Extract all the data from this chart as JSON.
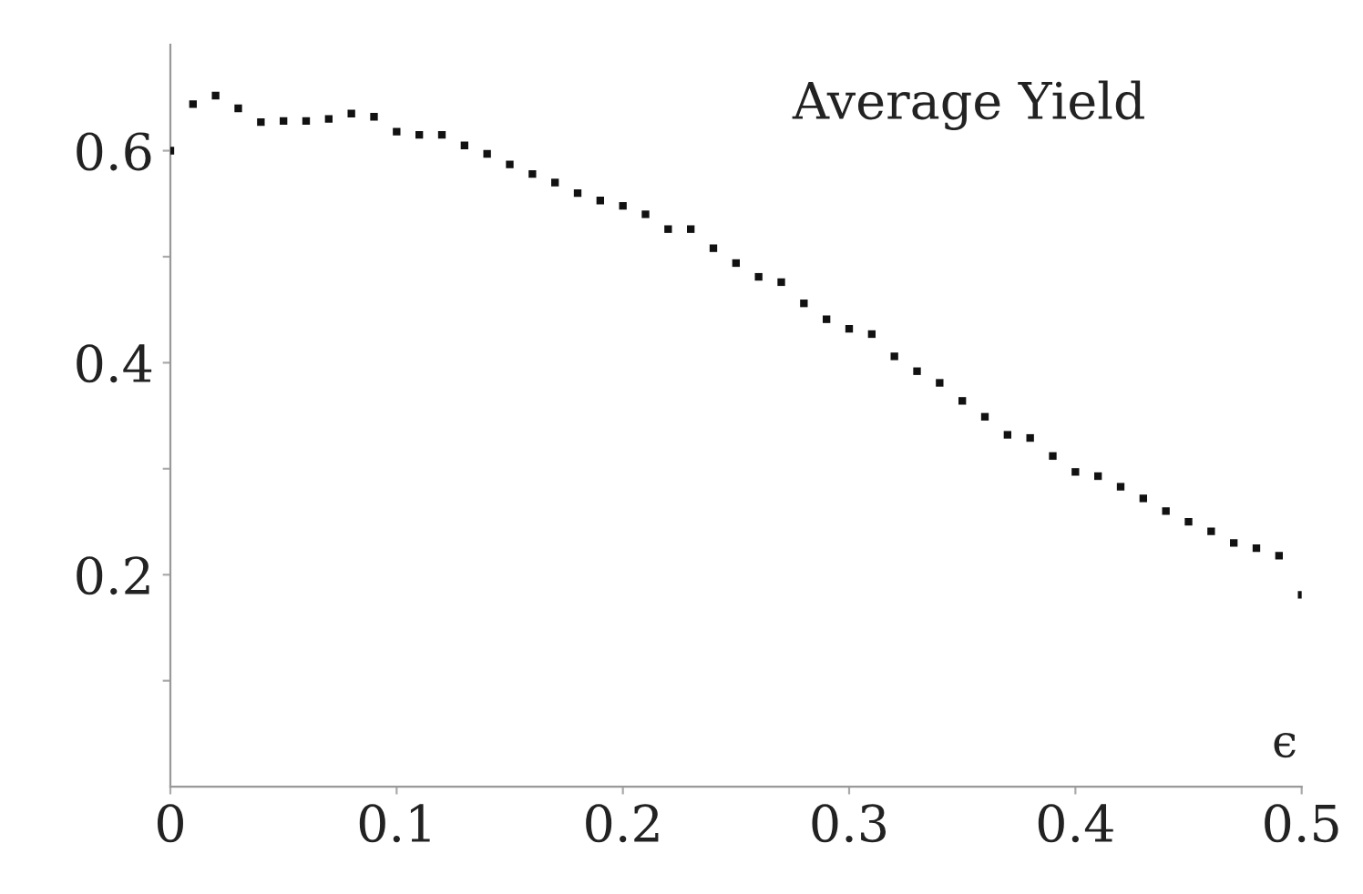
{
  "chart_data": {
    "type": "scatter",
    "title": "Average Yield",
    "xlabel": "ϵ",
    "x": [
      0,
      0.01,
      0.02,
      0.03,
      0.04,
      0.05,
      0.06,
      0.07,
      0.08,
      0.09,
      0.1,
      0.11,
      0.12,
      0.13,
      0.14,
      0.15,
      0.16,
      0.17,
      0.18,
      0.19,
      0.2,
      0.21,
      0.22,
      0.23,
      0.24,
      0.25,
      0.26,
      0.27,
      0.28,
      0.29,
      0.3,
      0.31,
      0.32,
      0.33,
      0.34,
      0.35,
      0.36,
      0.37,
      0.38,
      0.39,
      0.4,
      0.41,
      0.42,
      0.43,
      0.44,
      0.45,
      0.46,
      0.47,
      0.48,
      0.49,
      0.5
    ],
    "series": [
      {
        "color": "#111111",
        "values": [
          0.6,
          0.644,
          0.652,
          0.64,
          0.627,
          0.628,
          0.628,
          0.63,
          0.635,
          0.632,
          0.618,
          0.615,
          0.615,
          0.605,
          0.597,
          0.587,
          0.578,
          0.57,
          0.56,
          0.553,
          0.548,
          0.54,
          0.526,
          0.526,
          0.508,
          0.494,
          0.481,
          0.476,
          0.456,
          0.441,
          0.432,
          0.427,
          0.406,
          0.392,
          0.381,
          0.364,
          0.349,
          0.332,
          0.329,
          0.312,
          0.297,
          0.293,
          0.283,
          0.272,
          0.26,
          0.25,
          0.241,
          0.23,
          0.225,
          0.218,
          0.181
        ]
      }
    ],
    "xlim": [
      0,
      0.5
    ],
    "ylim": [
      0,
      0.7
    ],
    "xticks": [
      0,
      0.1,
      0.2,
      0.3,
      0.4,
      0.5
    ],
    "yticks": [
      {
        "value": 0.1,
        "label": null
      },
      0.2,
      {
        "value": 0.3,
        "label": null
      },
      0.4,
      {
        "value": 0.5,
        "label": null
      },
      0.6
    ],
    "marker": "square",
    "grid": false,
    "legend": false
  }
}
